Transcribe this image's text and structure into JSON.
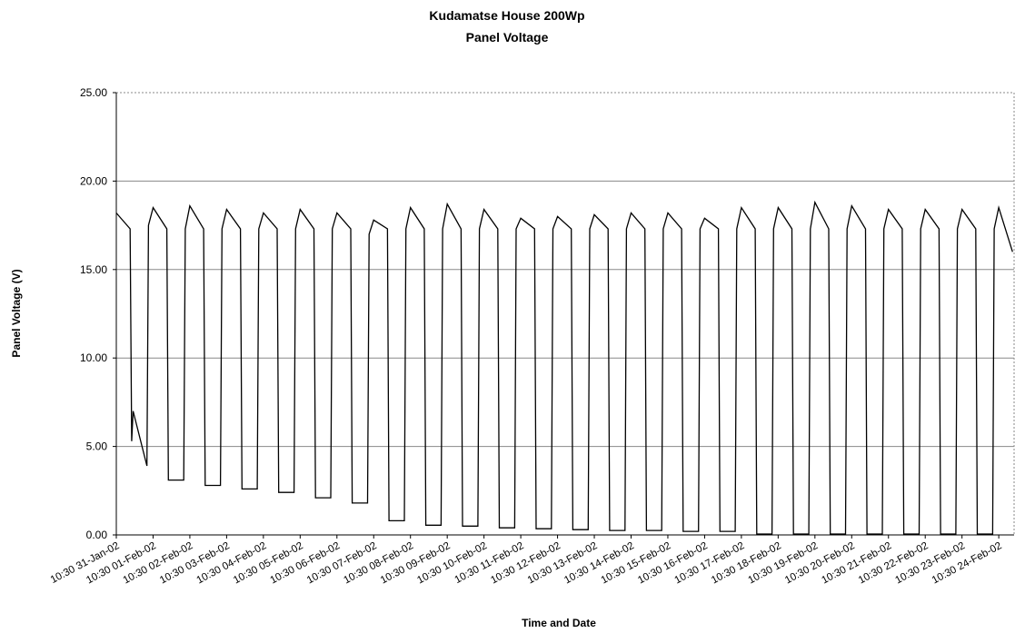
{
  "chart_data": {
    "type": "line",
    "title": "Kudamatse House 200Wp",
    "subtitle": "Panel Voltage",
    "x_label": "Time and Date",
    "y_label": "Panel Voltage (V)",
    "color": "#000000",
    "grid": true,
    "ylim": [
      0,
      25
    ],
    "yticks": [
      {
        "value": 0,
        "label": "0.00"
      },
      {
        "value": 5,
        "label": "5.00"
      },
      {
        "value": 10,
        "label": "10.00"
      },
      {
        "value": 15,
        "label": "15.00"
      },
      {
        "value": 20,
        "label": "20.00"
      },
      {
        "value": 25,
        "label": "25.00"
      }
    ],
    "xlim": [
      "10:30 31-Jan-02",
      "20:30 24-Feb-02"
    ],
    "xticks": [
      "10:30 31-Jan-02",
      "10:30 01-Feb-02",
      "10:30 02-Feb-02",
      "10:30 03-Feb-02",
      "10:30 04-Feb-02",
      "10:30 05-Feb-02",
      "10:30 06-Feb-02",
      "10:30 07-Feb-02",
      "10:30 08-Feb-02",
      "10:30 09-Feb-02",
      "10:30 10-Feb-02",
      "10:30 11-Feb-02",
      "10:30 12-Feb-02",
      "10:30 13-Feb-02",
      "10:30 14-Feb-02",
      "10:30 15-Feb-02",
      "10:30 16-Feb-02",
      "10:30 17-Feb-02",
      "10:30 18-Feb-02",
      "10:30 19-Feb-02",
      "10:30 20-Feb-02",
      "10:30 21-Feb-02",
      "10:30 22-Feb-02",
      "10:30 23-Feb-02",
      "10:30 24-Feb-02"
    ],
    "x": [
      "10:30 31-Jan-02",
      "19:30 31-Jan-02",
      "20:30 31-Jan-02",
      "21:30 31-Jan-02",
      "06:30 01-Feb-02",
      "07:30 01-Feb-02",
      "10:30 01-Feb-02",
      "19:30 01-Feb-02",
      "20:30 01-Feb-02",
      "06:30 02-Feb-02",
      "07:30 02-Feb-02",
      "10:30 02-Feb-02",
      "19:30 02-Feb-02",
      "20:30 02-Feb-02",
      "06:30 03-Feb-02",
      "07:30 03-Feb-02",
      "10:30 03-Feb-02",
      "19:30 03-Feb-02",
      "20:30 03-Feb-02",
      "06:30 04-Feb-02",
      "07:30 04-Feb-02",
      "10:30 04-Feb-02",
      "19:30 04-Feb-02",
      "20:30 04-Feb-02",
      "06:30 05-Feb-02",
      "07:30 05-Feb-02",
      "10:30 05-Feb-02",
      "19:30 05-Feb-02",
      "20:30 05-Feb-02",
      "06:30 06-Feb-02",
      "07:30 06-Feb-02",
      "10:30 06-Feb-02",
      "19:30 06-Feb-02",
      "20:30 06-Feb-02",
      "06:30 07-Feb-02",
      "07:30 07-Feb-02",
      "10:30 07-Feb-02",
      "19:30 07-Feb-02",
      "20:30 07-Feb-02",
      "06:30 08-Feb-02",
      "07:30 08-Feb-02",
      "10:30 08-Feb-02",
      "19:30 08-Feb-02",
      "20:30 08-Feb-02",
      "06:30 09-Feb-02",
      "07:30 09-Feb-02",
      "10:30 09-Feb-02",
      "19:30 09-Feb-02",
      "20:30 09-Feb-02",
      "06:30 10-Feb-02",
      "07:30 10-Feb-02",
      "10:30 10-Feb-02",
      "19:30 10-Feb-02",
      "20:30 10-Feb-02",
      "06:30 11-Feb-02",
      "07:30 11-Feb-02",
      "10:30 11-Feb-02",
      "19:30 11-Feb-02",
      "20:30 11-Feb-02",
      "06:30 12-Feb-02",
      "07:30 12-Feb-02",
      "10:30 12-Feb-02",
      "19:30 12-Feb-02",
      "20:30 12-Feb-02",
      "06:30 13-Feb-02",
      "07:30 13-Feb-02",
      "10:30 13-Feb-02",
      "19:30 13-Feb-02",
      "20:30 13-Feb-02",
      "06:30 14-Feb-02",
      "07:30 14-Feb-02",
      "10:30 14-Feb-02",
      "19:30 14-Feb-02",
      "20:30 14-Feb-02",
      "06:30 15-Feb-02",
      "07:30 15-Feb-02",
      "10:30 15-Feb-02",
      "19:30 15-Feb-02",
      "20:30 15-Feb-02",
      "06:30 16-Feb-02",
      "07:30 16-Feb-02",
      "10:30 16-Feb-02",
      "19:30 16-Feb-02",
      "20:30 16-Feb-02",
      "06:30 17-Feb-02",
      "07:30 17-Feb-02",
      "10:30 17-Feb-02",
      "19:30 17-Feb-02",
      "20:30 17-Feb-02",
      "06:30 18-Feb-02",
      "07:30 18-Feb-02",
      "10:30 18-Feb-02",
      "19:30 18-Feb-02",
      "20:30 18-Feb-02",
      "06:30 19-Feb-02",
      "07:30 19-Feb-02",
      "10:30 19-Feb-02",
      "19:30 19-Feb-02",
      "20:30 19-Feb-02",
      "06:30 20-Feb-02",
      "07:30 20-Feb-02",
      "10:30 20-Feb-02",
      "19:30 20-Feb-02",
      "20:30 20-Feb-02",
      "06:30 21-Feb-02",
      "07:30 21-Feb-02",
      "10:30 21-Feb-02",
      "19:30 21-Feb-02",
      "20:30 21-Feb-02",
      "06:30 22-Feb-02",
      "07:30 22-Feb-02",
      "10:30 22-Feb-02",
      "19:30 22-Feb-02",
      "20:30 22-Feb-02",
      "06:30 23-Feb-02",
      "07:30 23-Feb-02",
      "10:30 23-Feb-02",
      "19:30 23-Feb-02",
      "20:30 23-Feb-02",
      "06:30 24-Feb-02",
      "07:30 24-Feb-02",
      "10:30 24-Feb-02",
      "19:30 24-Feb-02"
    ],
    "values": [
      18.2,
      17.3,
      5.3,
      7.0,
      3.9,
      17.5,
      18.5,
      17.3,
      3.1,
      3.1,
      17.3,
      18.6,
      17.3,
      2.8,
      2.8,
      17.3,
      18.4,
      17.3,
      2.6,
      2.6,
      17.3,
      18.2,
      17.3,
      2.4,
      2.4,
      17.3,
      18.4,
      17.3,
      2.1,
      2.1,
      17.3,
      18.2,
      17.3,
      1.8,
      1.8,
      17.0,
      17.8,
      17.3,
      0.8,
      0.8,
      17.3,
      18.5,
      17.3,
      0.55,
      0.55,
      17.3,
      18.7,
      17.3,
      0.5,
      0.5,
      17.3,
      18.4,
      17.3,
      0.4,
      0.4,
      17.3,
      17.9,
      17.3,
      0.35,
      0.35,
      17.3,
      18.0,
      17.3,
      0.3,
      0.3,
      17.3,
      18.1,
      17.3,
      0.25,
      0.25,
      17.3,
      18.2,
      17.3,
      0.25,
      0.25,
      17.3,
      18.2,
      17.3,
      0.2,
      0.2,
      17.3,
      17.9,
      17.3,
      0.2,
      0.2,
      17.3,
      18.5,
      17.3,
      0.05,
      0.05,
      17.3,
      18.5,
      17.3,
      0.05,
      0.05,
      17.3,
      18.8,
      17.3,
      0.05,
      0.05,
      17.3,
      18.6,
      17.3,
      0.05,
      0.05,
      17.3,
      18.4,
      17.3,
      0.05,
      0.05,
      17.3,
      18.4,
      17.3,
      0.05,
      0.05,
      17.3,
      18.4,
      17.3,
      0.05,
      0.05,
      17.3,
      18.5,
      16.0
    ]
  }
}
